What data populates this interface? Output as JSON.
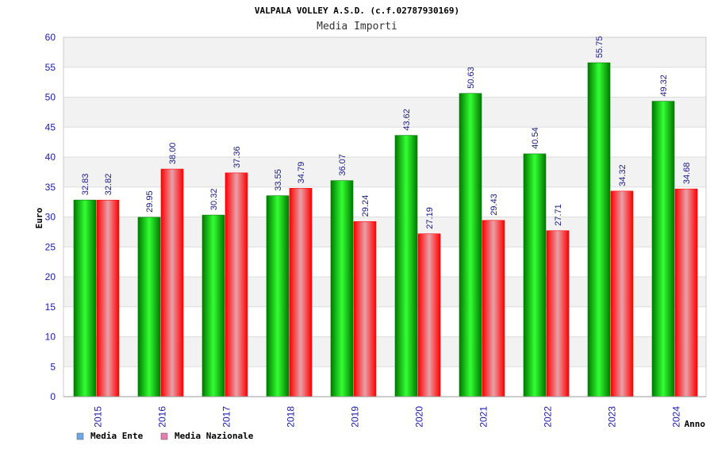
{
  "chart_data": {
    "type": "bar",
    "title": "VALPALA VOLLEY A.S.D. (c.f.02787930169)",
    "subtitle": "Media Importi",
    "xlabel": "Anno",
    "ylabel": "Euro",
    "ylim": [
      0,
      60
    ],
    "yticks": [
      "0",
      "5",
      "10",
      "15",
      "20",
      "25",
      "30",
      "35",
      "40",
      "45",
      "50",
      "55",
      "60"
    ],
    "categories": [
      "2015",
      "2016",
      "2017",
      "2018",
      "2019",
      "2020",
      "2021",
      "2022",
      "2023",
      "2024"
    ],
    "series": [
      {
        "name": "Media Ente",
        "values": [
          32.83,
          29.95,
          30.32,
          33.55,
          36.07,
          43.62,
          50.63,
          40.54,
          55.75,
          49.32
        ],
        "labels": [
          "32.83",
          "29.95",
          "30.32",
          "33.55",
          "36.07",
          "43.62",
          "50.63",
          "40.54",
          "55.75",
          "49.32"
        ]
      },
      {
        "name": "Media Nazionale",
        "values": [
          32.82,
          38.0,
          37.36,
          34.79,
          29.24,
          27.19,
          29.43,
          27.71,
          34.32,
          34.68
        ],
        "labels": [
          "32.82",
          "38.00",
          "37.36",
          "34.79",
          "29.24",
          "27.19",
          "29.43",
          "27.71",
          "34.32",
          "34.68"
        ]
      }
    ],
    "legend": [
      {
        "label": "Media Ente",
        "color": "#6fa8e8"
      },
      {
        "label": "Media Nazionale",
        "color": "#e07fb0"
      }
    ],
    "colors": {
      "ente_dark": "#007a00",
      "ente_light": "#33ff33",
      "naz_dark": "#ff0000",
      "naz_light": "#e8a0a8",
      "band": "#f2f2f2",
      "grid": "#dddddd"
    }
  }
}
